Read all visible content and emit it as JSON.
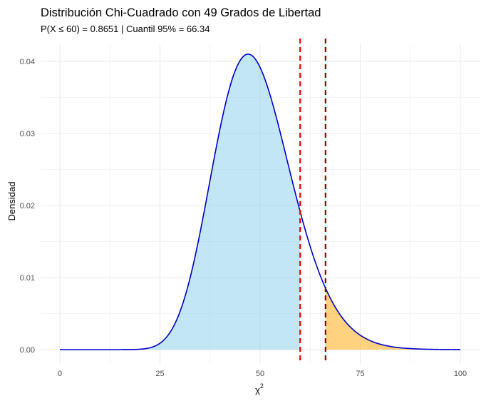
{
  "chart_data": {
    "type": "area",
    "title": "Distribución Chi-Cuadrado con 49 Grados de Libertad",
    "subtitle": "P(X ≤ 60) = 0.8651 | Cuantil 95% = 66.34",
    "xlabel": "χ",
    "xlabel_superscript": "2",
    "ylabel": "Densidad",
    "df": 49,
    "xlim": [
      0,
      100
    ],
    "ylim": [
      0,
      0.042
    ],
    "x_ticks": [
      0,
      25,
      50,
      75,
      100
    ],
    "y_ticks": [
      0.0,
      0.01,
      0.02,
      0.03,
      0.04
    ],
    "x_tick_labels": [
      "0",
      "25",
      "50",
      "75",
      "100"
    ],
    "y_tick_labels": [
      "0.00",
      "0.01",
      "0.02",
      "0.03",
      "0.04"
    ],
    "grid": true,
    "curve_color": "#0000cc",
    "shaded_regions": [
      {
        "from": 0,
        "to": 60,
        "color": "#87ceeb",
        "opacity": 0.5
      },
      {
        "from": 66.34,
        "to": 100,
        "color": "#ffa500",
        "opacity": 0.5
      }
    ],
    "vlines": [
      {
        "x": 60,
        "color": "#ee0000",
        "style": "dashed"
      },
      {
        "x": 66.34,
        "color": "#8b0000",
        "style": "dashed"
      }
    ]
  }
}
